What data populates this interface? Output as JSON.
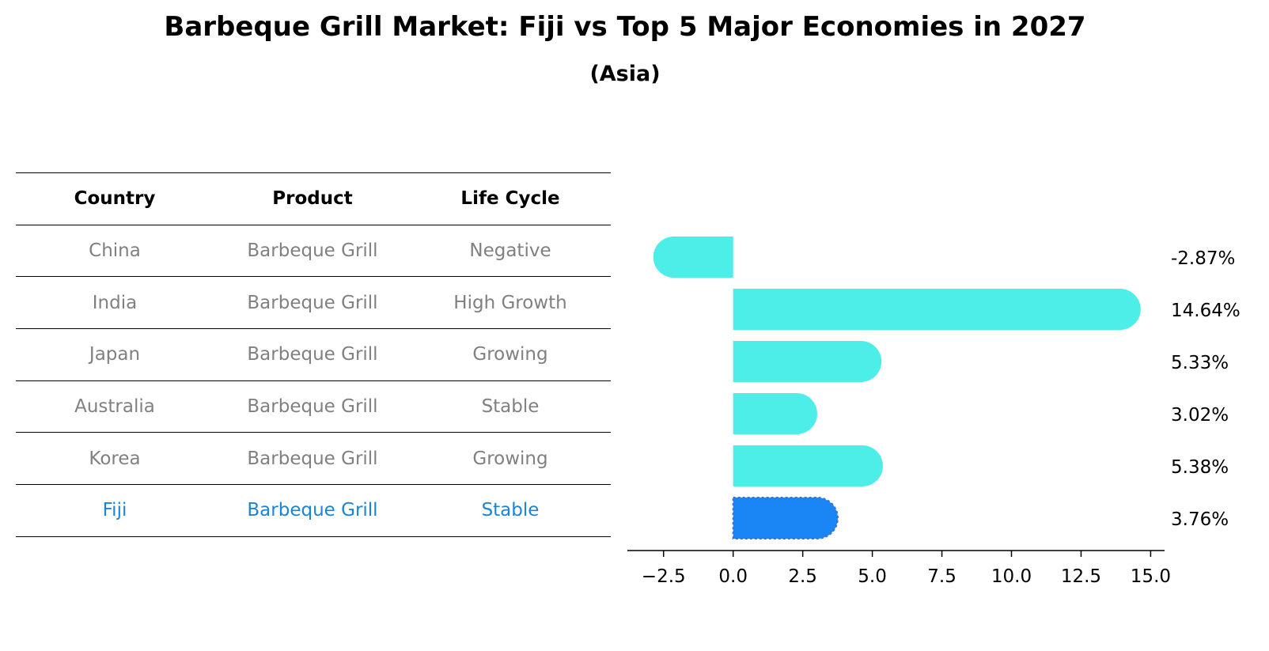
{
  "title": "Barbeque Grill Market: Fiji vs Top 5 Major Economies in 2027",
  "subtitle": "(Asia)",
  "table": {
    "headers": [
      "Country",
      "Product",
      "Life Cycle"
    ],
    "rows": [
      {
        "country": "China",
        "product": "Barbeque Grill",
        "life_cycle": "Negative"
      },
      {
        "country": "India",
        "product": "Barbeque Grill",
        "life_cycle": "High Growth"
      },
      {
        "country": "Japan",
        "product": "Barbeque Grill",
        "life_cycle": "Growing"
      },
      {
        "country": "Australia",
        "product": "Barbeque Grill",
        "life_cycle": "Stable"
      },
      {
        "country": "Korea",
        "product": "Barbeque Grill",
        "life_cycle": "Growing"
      },
      {
        "country": "Fiji",
        "product": "Barbeque Grill",
        "life_cycle": "Stable"
      }
    ]
  },
  "colors": {
    "bar": "#4deee8",
    "highlight_bar": "#1a85f5",
    "highlight_text": "#1a85d6",
    "muted_text": "#808080"
  },
  "chart_data": {
    "type": "bar",
    "orientation": "horizontal",
    "title": "Barbeque Grill Market: Fiji vs Top 5 Major Economies in 2027",
    "subtitle": "(Asia)",
    "categories": [
      "China",
      "India",
      "Japan",
      "Australia",
      "Korea",
      "Fiji"
    ],
    "values": [
      -2.87,
      14.64,
      5.33,
      3.02,
      5.38,
      3.76
    ],
    "value_labels": [
      "-2.87%",
      "14.64%",
      "5.33%",
      "3.02%",
      "5.38%",
      "3.76%"
    ],
    "highlight": "Fiji",
    "xlim": [
      -3.8,
      15.5
    ],
    "xticks": [
      -2.5,
      0.0,
      2.5,
      5.0,
      7.5,
      10.0,
      12.5,
      15.0
    ],
    "xtick_labels": [
      "−2.5",
      "0.0",
      "2.5",
      "5.0",
      "7.5",
      "10.0",
      "12.5",
      "15.0"
    ],
    "xlabel": "",
    "ylabel": "",
    "grid": false
  }
}
